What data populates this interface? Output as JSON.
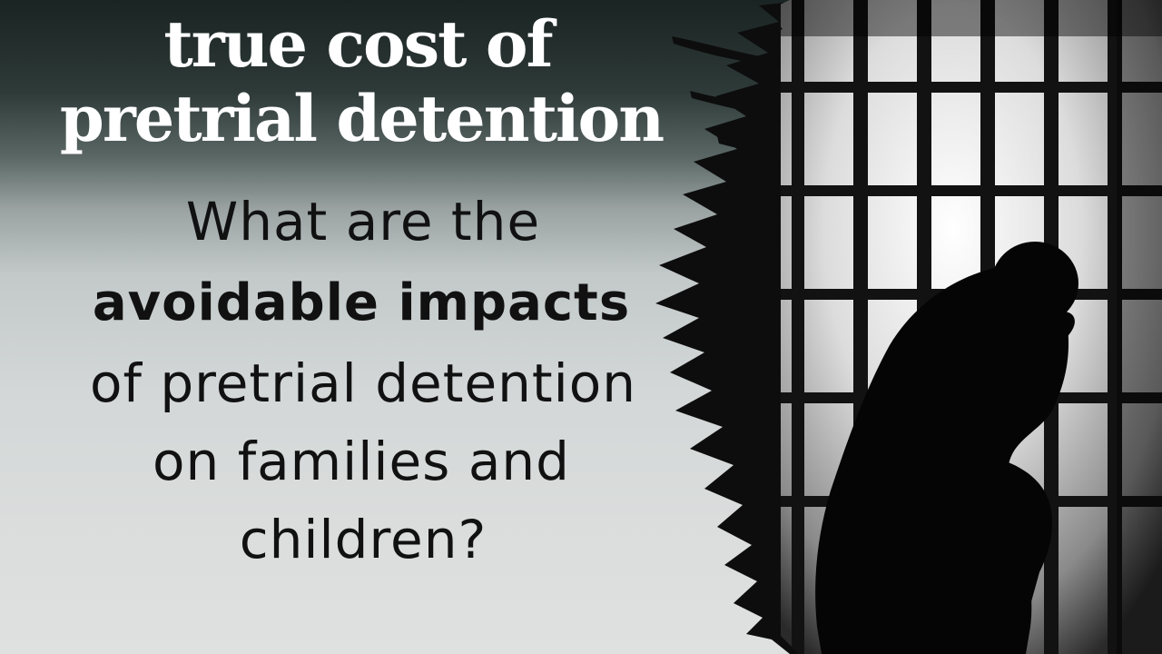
{
  "title": {
    "line1": "true cost of",
    "line2": "pretrial detention"
  },
  "question": {
    "line1": "What are the",
    "line2_bold": "avoidable impacts",
    "line3": "of pretrial detention",
    "line4": "on families and",
    "line5": "children?"
  },
  "image": {
    "icon": "jail-bars-silhouette",
    "description_visible_only": "silhouette of person sitting behind prison bars"
  },
  "colors": {
    "title": "#ffffff",
    "question_text": "#111111",
    "bars": "#111111",
    "window_light": "#f2f2f2"
  }
}
